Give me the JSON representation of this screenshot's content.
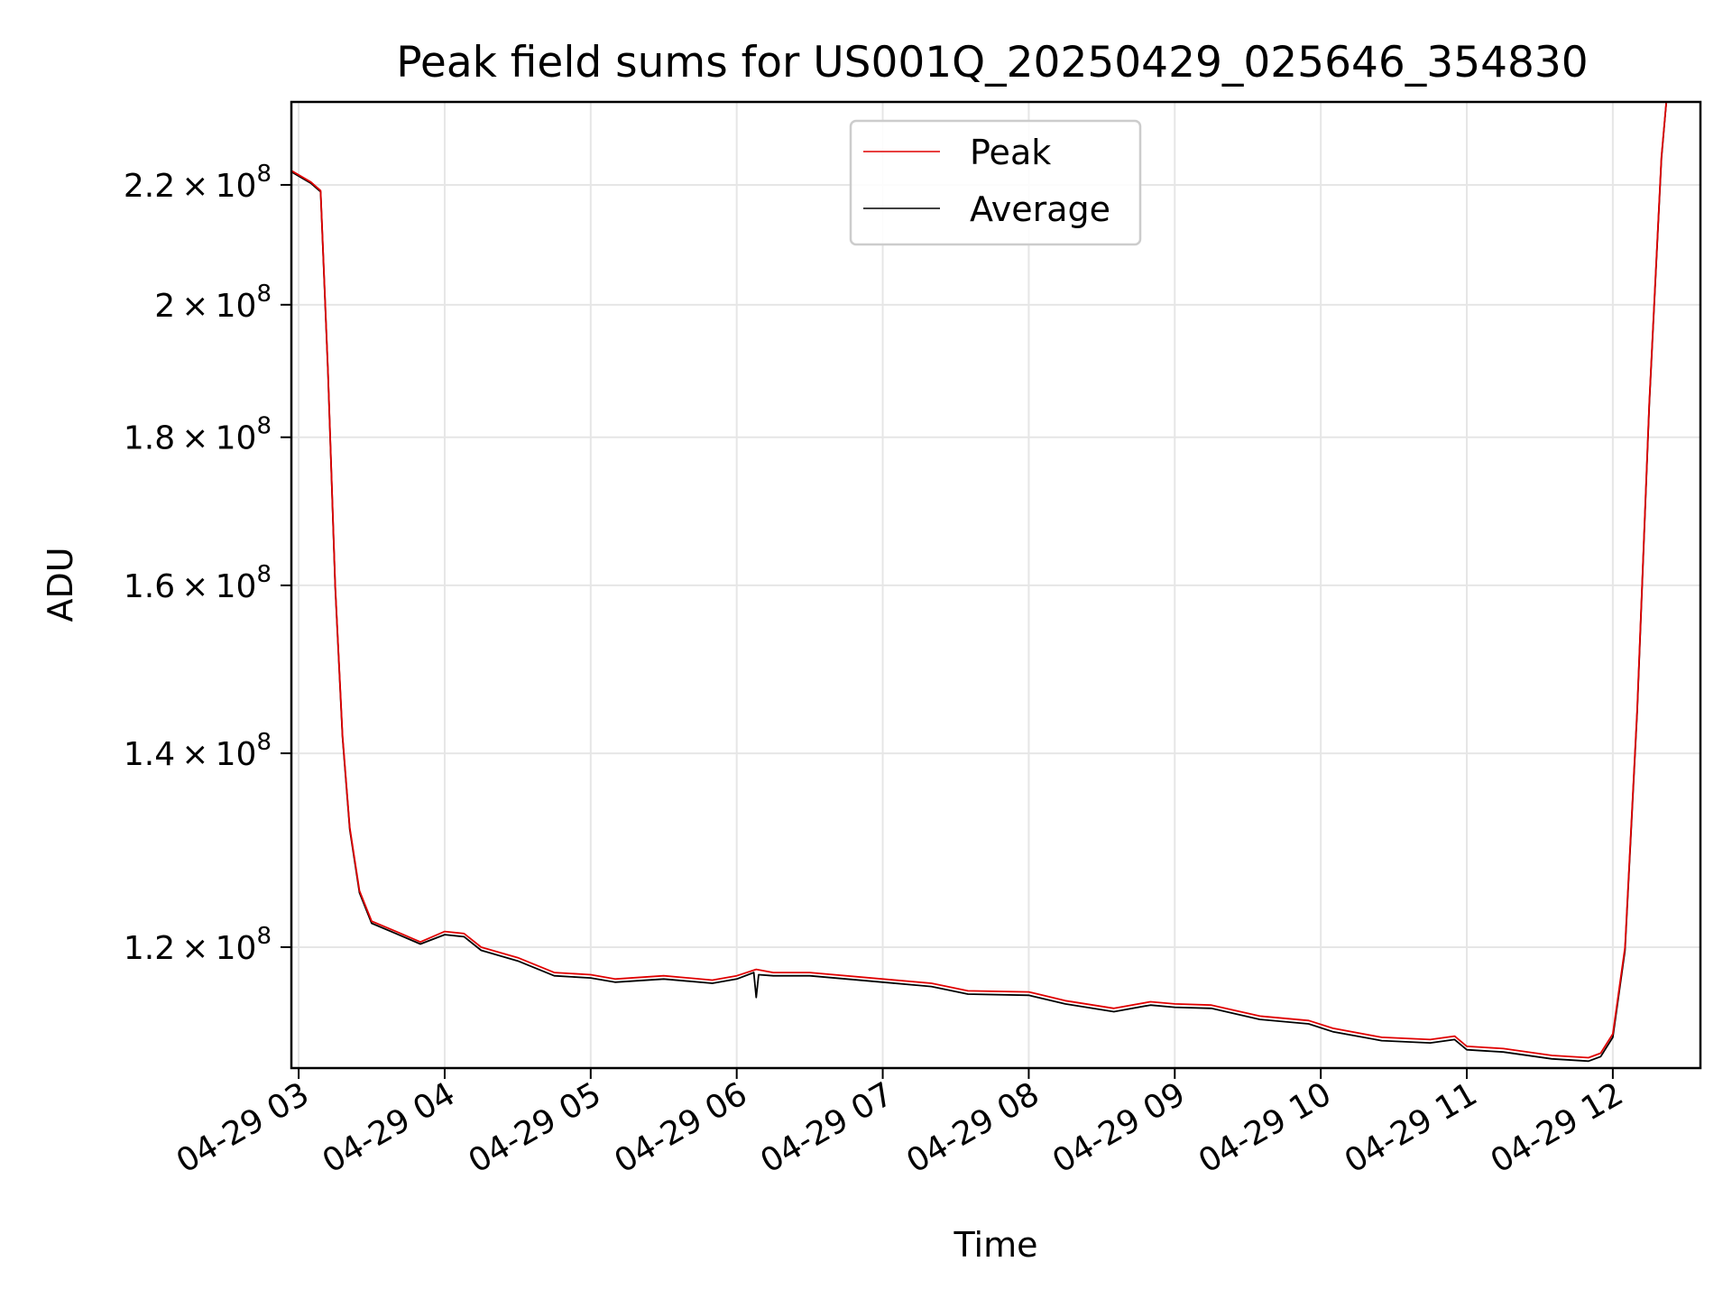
{
  "chart_data": {
    "type": "line",
    "title": "Peak field sums for US001Q_20250429_025646_354830",
    "xlabel": "Time",
    "ylabel": "ADU",
    "y_scale": "log",
    "grid": true,
    "legend_position": "upper-center",
    "xlim": [
      "2025-04-29 02:57",
      "2025-04-29 12:36"
    ],
    "ylim": [
      109000000,
      235000000
    ],
    "x_ticks": [
      {
        "value": "2025-04-29 03:00",
        "label": "04-29 03"
      },
      {
        "value": "2025-04-29 04:00",
        "label": "04-29 04"
      },
      {
        "value": "2025-04-29 05:00",
        "label": "04-29 05"
      },
      {
        "value": "2025-04-29 06:00",
        "label": "04-29 06"
      },
      {
        "value": "2025-04-29 07:00",
        "label": "04-29 07"
      },
      {
        "value": "2025-04-29 08:00",
        "label": "04-29 08"
      },
      {
        "value": "2025-04-29 09:00",
        "label": "04-29 09"
      },
      {
        "value": "2025-04-29 10:00",
        "label": "04-29 10"
      },
      {
        "value": "2025-04-29 11:00",
        "label": "04-29 11"
      },
      {
        "value": "2025-04-29 12:00",
        "label": "04-29 12"
      }
    ],
    "y_ticks": [
      {
        "value": 220000000,
        "mantissa": "2.2",
        "base": "10",
        "exponent": "8"
      },
      {
        "value": 200000000,
        "mantissa": "2",
        "base": "10",
        "exponent": "8"
      },
      {
        "value": 180000000,
        "mantissa": "1.8",
        "base": "10",
        "exponent": "8"
      },
      {
        "value": 160000000,
        "mantissa": "1.6",
        "base": "10",
        "exponent": "8"
      },
      {
        "value": 140000000,
        "mantissa": "1.4",
        "base": "10",
        "exponent": "8"
      },
      {
        "value": 120000000,
        "mantissa": "1.2",
        "base": "10",
        "exponent": "8"
      }
    ],
    "series": [
      {
        "name": "Peak",
        "color": "#e00000",
        "points": [
          [
            "2025-04-29 02:57",
            222500000
          ],
          [
            "2025-04-29 03:05",
            220500000
          ],
          [
            "2025-04-29 03:09",
            219000000
          ],
          [
            "2025-04-29 03:12",
            190000000
          ],
          [
            "2025-04-29 03:15",
            160000000
          ],
          [
            "2025-04-29 03:18",
            142000000
          ],
          [
            "2025-04-29 03:21",
            132000000
          ],
          [
            "2025-04-29 03:25",
            125500000
          ],
          [
            "2025-04-29 03:30",
            122500000
          ],
          [
            "2025-04-29 03:40",
            121500000
          ],
          [
            "2025-04-29 03:50",
            120500000
          ],
          [
            "2025-04-29 04:00",
            121500000
          ],
          [
            "2025-04-29 04:08",
            121300000
          ],
          [
            "2025-04-29 04:15",
            120000000
          ],
          [
            "2025-04-29 04:30",
            119000000
          ],
          [
            "2025-04-29 04:45",
            117600000
          ],
          [
            "2025-04-29 05:00",
            117400000
          ],
          [
            "2025-04-29 05:10",
            117000000
          ],
          [
            "2025-04-29 05:30",
            117300000
          ],
          [
            "2025-04-29 05:50",
            116900000
          ],
          [
            "2025-04-29 06:00",
            117300000
          ],
          [
            "2025-04-29 06:08",
            117900000
          ],
          [
            "2025-04-29 06:15",
            117600000
          ],
          [
            "2025-04-29 06:30",
            117600000
          ],
          [
            "2025-04-29 07:00",
            117000000
          ],
          [
            "2025-04-29 07:20",
            116600000
          ],
          [
            "2025-04-29 07:35",
            115900000
          ],
          [
            "2025-04-29 08:00",
            115800000
          ],
          [
            "2025-04-29 08:15",
            115000000
          ],
          [
            "2025-04-29 08:35",
            114300000
          ],
          [
            "2025-04-29 08:50",
            114900000
          ],
          [
            "2025-04-29 09:00",
            114700000
          ],
          [
            "2025-04-29 09:15",
            114600000
          ],
          [
            "2025-04-29 09:35",
            113600000
          ],
          [
            "2025-04-29 09:55",
            113200000
          ],
          [
            "2025-04-29 10:05",
            112500000
          ],
          [
            "2025-04-29 10:25",
            111700000
          ],
          [
            "2025-04-29 10:45",
            111500000
          ],
          [
            "2025-04-29 10:55",
            111800000
          ],
          [
            "2025-04-29 11:00",
            110900000
          ],
          [
            "2025-04-29 11:15",
            110700000
          ],
          [
            "2025-04-29 11:35",
            110100000
          ],
          [
            "2025-04-29 11:50",
            109900000
          ],
          [
            "2025-04-29 11:55",
            110300000
          ],
          [
            "2025-04-29 12:00",
            112000000
          ],
          [
            "2025-04-29 12:05",
            120000000
          ],
          [
            "2025-04-29 12:10",
            145000000
          ],
          [
            "2025-04-29 12:15",
            185000000
          ],
          [
            "2025-04-29 12:20",
            225000000
          ],
          [
            "2025-04-29 12:22",
            235000000
          ],
          [
            "2025-04-29 12:36",
            235000000
          ]
        ]
      },
      {
        "name": "Average",
        "color": "#000000",
        "points": [
          [
            "2025-04-29 02:57",
            222300000
          ],
          [
            "2025-04-29 03:05",
            220300000
          ],
          [
            "2025-04-29 03:09",
            218800000
          ],
          [
            "2025-04-29 03:12",
            189800000
          ],
          [
            "2025-04-29 03:15",
            159800000
          ],
          [
            "2025-04-29 03:18",
            141800000
          ],
          [
            "2025-04-29 03:21",
            131800000
          ],
          [
            "2025-04-29 03:25",
            125300000
          ],
          [
            "2025-04-29 03:30",
            122300000
          ],
          [
            "2025-04-29 03:40",
            121300000
          ],
          [
            "2025-04-29 03:50",
            120300000
          ],
          [
            "2025-04-29 04:00",
            121200000
          ],
          [
            "2025-04-29 04:08",
            121000000
          ],
          [
            "2025-04-29 04:15",
            119700000
          ],
          [
            "2025-04-29 04:30",
            118700000
          ],
          [
            "2025-04-29 04:45",
            117300000
          ],
          [
            "2025-04-29 05:00",
            117100000
          ],
          [
            "2025-04-29 05:10",
            116700000
          ],
          [
            "2025-04-29 05:30",
            117000000
          ],
          [
            "2025-04-29 05:50",
            116600000
          ],
          [
            "2025-04-29 06:00",
            117000000
          ],
          [
            "2025-04-29 06:07",
            117600000
          ],
          [
            "2025-04-29 06:08",
            115300000
          ],
          [
            "2025-04-29 06:09",
            117400000
          ],
          [
            "2025-04-29 06:15",
            117300000
          ],
          [
            "2025-04-29 06:30",
            117300000
          ],
          [
            "2025-04-29 07:00",
            116700000
          ],
          [
            "2025-04-29 07:20",
            116300000
          ],
          [
            "2025-04-29 07:35",
            115600000
          ],
          [
            "2025-04-29 08:00",
            115500000
          ],
          [
            "2025-04-29 08:15",
            114700000
          ],
          [
            "2025-04-29 08:35",
            114000000
          ],
          [
            "2025-04-29 08:50",
            114600000
          ],
          [
            "2025-04-29 09:00",
            114400000
          ],
          [
            "2025-04-29 09:15",
            114300000
          ],
          [
            "2025-04-29 09:35",
            113300000
          ],
          [
            "2025-04-29 09:55",
            112900000
          ],
          [
            "2025-04-29 10:05",
            112200000
          ],
          [
            "2025-04-29 10:25",
            111400000
          ],
          [
            "2025-04-29 10:45",
            111200000
          ],
          [
            "2025-04-29 10:55",
            111500000
          ],
          [
            "2025-04-29 11:00",
            110600000
          ],
          [
            "2025-04-29 11:15",
            110400000
          ],
          [
            "2025-04-29 11:35",
            109800000
          ],
          [
            "2025-04-29 11:50",
            109600000
          ],
          [
            "2025-04-29 11:55",
            110000000
          ],
          [
            "2025-04-29 12:00",
            111700000
          ],
          [
            "2025-04-29 12:05",
            119700000
          ],
          [
            "2025-04-29 12:10",
            144700000
          ],
          [
            "2025-04-29 12:15",
            184700000
          ],
          [
            "2025-04-29 12:20",
            224700000
          ],
          [
            "2025-04-29 12:22",
            235000000
          ],
          [
            "2025-04-29 12:36",
            235000000
          ]
        ]
      }
    ]
  }
}
